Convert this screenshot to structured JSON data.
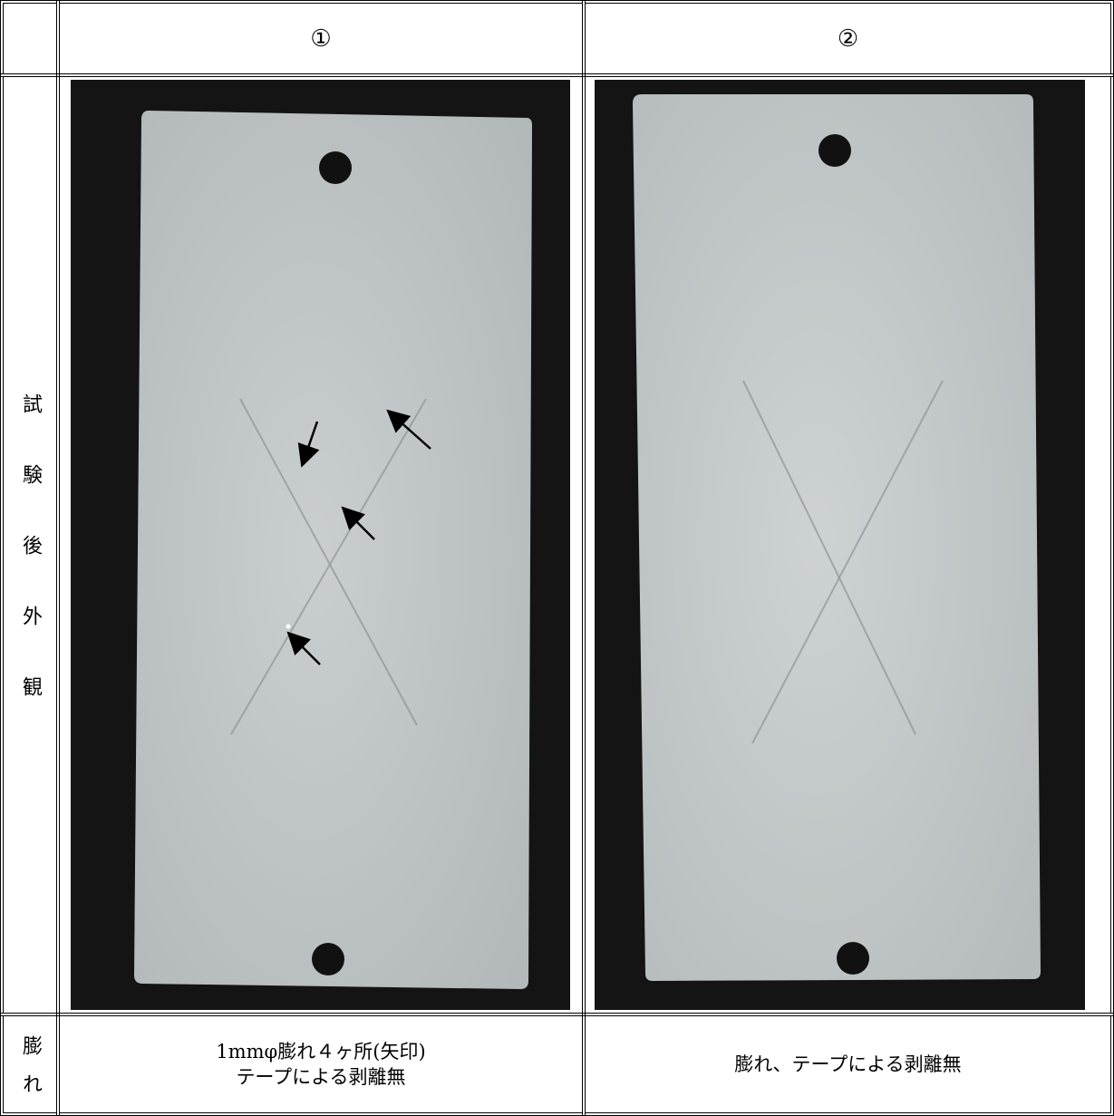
{
  "table": {
    "header": [
      "①",
      "②"
    ],
    "appearance_label": "試験後外観",
    "blister_label": "膨れ",
    "blister_results": [
      [
        "1mmφ膨れ４ヶ所(矢印)",
        "テープによる剥離無"
      ],
      [
        "膨れ、テープによる剥離無"
      ]
    ]
  }
}
